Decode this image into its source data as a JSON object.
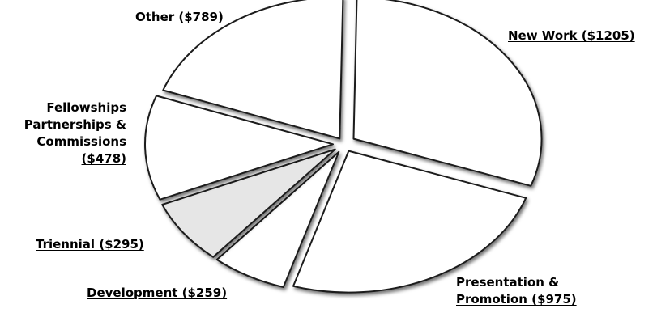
{
  "chart_data": {
    "type": "pie",
    "title": "",
    "slices": [
      {
        "name": "New Work",
        "value": 1205,
        "label": "New Work ($1205)",
        "fill": "#ffffff"
      },
      {
        "name": "Presentation & Promotion",
        "value": 975,
        "label_lines": [
          "Presentation &",
          "Promotion ($975)"
        ],
        "fill": "#ffffff"
      },
      {
        "name": "Development",
        "value": 259,
        "label": "Development ($259)",
        "fill": "#ffffff"
      },
      {
        "name": "Triennial",
        "value": 295,
        "label": "Triennial ($295)",
        "fill": "#e6e6e6"
      },
      {
        "name": "Fellowships Partnerships & Commissions",
        "value": 478,
        "label_lines": [
          "Fellowships",
          "Partnerships &",
          "Commissions",
          "($478)"
        ],
        "fill": "#ffffff"
      },
      {
        "name": "Other",
        "value": 789,
        "label": "Other ($789)",
        "fill": "#ffffff"
      }
    ],
    "exploded": true,
    "legend": "none"
  }
}
